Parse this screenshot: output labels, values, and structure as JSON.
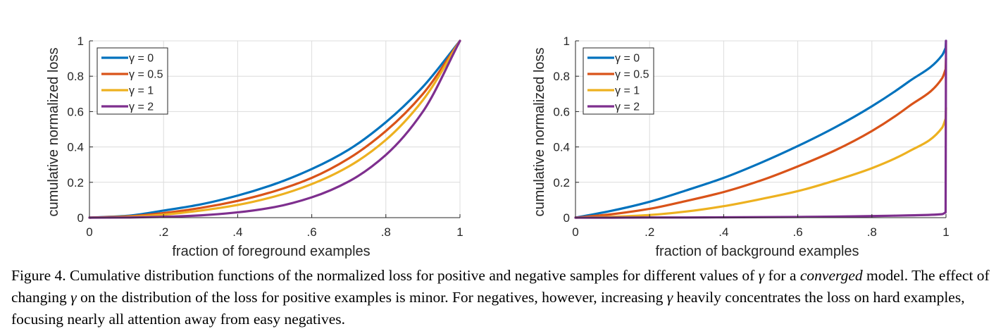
{
  "figure": {
    "caption_parts": [
      "Figure 4. Cumulative distribution functions of the normalized loss for positive and negative samples for different values of ",
      "γ",
      " for a ",
      "converged",
      " model. The effect of changing ",
      "γ",
      " on the distribution of the loss for positive examples is minor. For negatives, however, increasing ",
      "γ",
      " heavily concentrates the loss on hard examples, focusing nearly all attention away from easy negatives."
    ]
  },
  "chart_data": [
    {
      "type": "line",
      "title": "",
      "xlabel": "fraction of foreground examples",
      "ylabel": "cumulative normalized loss",
      "xlim": [
        0,
        1
      ],
      "ylim": [
        0,
        1
      ],
      "xticks": [
        0,
        0.2,
        0.4,
        0.6,
        0.8,
        1
      ],
      "xtick_labels": [
        "0",
        ".2",
        ".4",
        ".6",
        ".8",
        "1"
      ],
      "yticks": [
        0,
        0.2,
        0.4,
        0.6,
        0.8,
        1
      ],
      "ytick_labels": [
        "0",
        "0.2",
        "0.4",
        "0.6",
        "0.8",
        "1"
      ],
      "grid": true,
      "legend_position": "top-left",
      "x": [
        0,
        0.1,
        0.2,
        0.3,
        0.4,
        0.5,
        0.6,
        0.7,
        0.8,
        0.9,
        1.0
      ],
      "series": [
        {
          "name": "γ = 0",
          "color": "#0072BD",
          "values": [
            0,
            0.01,
            0.04,
            0.075,
            0.125,
            0.19,
            0.275,
            0.385,
            0.54,
            0.74,
            1.0
          ]
        },
        {
          "name": "γ = 0.5",
          "color": "#D95319",
          "values": [
            0,
            0.007,
            0.026,
            0.055,
            0.095,
            0.15,
            0.225,
            0.335,
            0.49,
            0.7,
            1.0
          ]
        },
        {
          "name": "γ = 1",
          "color": "#EDB120",
          "values": [
            0,
            0.004,
            0.017,
            0.04,
            0.072,
            0.12,
            0.19,
            0.29,
            0.44,
            0.665,
            1.0
          ]
        },
        {
          "name": "γ = 2",
          "color": "#7E2F8E",
          "values": [
            0,
            0.001,
            0.005,
            0.013,
            0.03,
            0.06,
            0.115,
            0.205,
            0.355,
            0.6,
            1.0
          ]
        }
      ]
    },
    {
      "type": "line",
      "title": "",
      "xlabel": "fraction of background examples",
      "ylabel": "cumulative normalized loss",
      "xlim": [
        0,
        1
      ],
      "ylim": [
        0,
        1
      ],
      "xticks": [
        0,
        0.2,
        0.4,
        0.6,
        0.8,
        1
      ],
      "xtick_labels": [
        "0",
        ".2",
        ".4",
        ".6",
        ".8",
        "1"
      ],
      "yticks": [
        0,
        0.2,
        0.4,
        0.6,
        0.8,
        1
      ],
      "ytick_labels": [
        "0",
        "0.2",
        "0.4",
        "0.6",
        "0.8",
        "1"
      ],
      "grid": true,
      "legend_position": "top-left",
      "x": [
        0,
        0.1,
        0.2,
        0.3,
        0.4,
        0.5,
        0.6,
        0.7,
        0.8,
        0.9,
        0.99,
        0.999,
        1.0
      ],
      "series": [
        {
          "name": "γ = 0",
          "color": "#0072BD",
          "values": [
            0,
            0.04,
            0.09,
            0.155,
            0.225,
            0.31,
            0.405,
            0.51,
            0.63,
            0.77,
            0.92,
            0.96,
            1.0
          ]
        },
        {
          "name": "γ = 0.5",
          "color": "#D95319",
          "values": [
            0,
            0.02,
            0.05,
            0.095,
            0.145,
            0.21,
            0.29,
            0.38,
            0.49,
            0.63,
            0.79,
            0.84,
            0.9
          ]
        },
        {
          "name": "γ = 1",
          "color": "#EDB120",
          "values": [
            0,
            0.005,
            0.015,
            0.035,
            0.065,
            0.105,
            0.15,
            0.21,
            0.28,
            0.375,
            0.51,
            0.56,
            0.62
          ]
        },
        {
          "name": "γ = 2",
          "color": "#7E2F8E",
          "values": [
            0,
            0,
            0.001,
            0.001,
            0.002,
            0.003,
            0.004,
            0.006,
            0.009,
            0.013,
            0.02,
            0.03,
            1.0
          ]
        }
      ]
    }
  ]
}
